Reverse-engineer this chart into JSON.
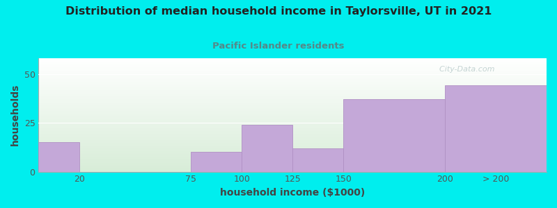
{
  "title": "Distribution of median household income in Taylorsville, UT in 2021",
  "subtitle": "Pacific Islander residents",
  "xlabel": "household income ($1000)",
  "ylabel": "households",
  "background_outer": "#00EEEE",
  "background_inner_top": "#FFFFFF",
  "background_inner_bottom": "#D8EDD8",
  "bar_color": "#C4A8D8",
  "bar_edge_color": "#B090C4",
  "title_color": "#222222",
  "subtitle_color": "#558888",
  "axis_label_color": "#444444",
  "tick_label_color": "#555555",
  "values": [
    15,
    0,
    10,
    24,
    12,
    37,
    44
  ],
  "bar_lefts": [
    0,
    20,
    75,
    100,
    125,
    150,
    200
  ],
  "bar_rights": [
    20,
    75,
    100,
    125,
    150,
    200,
    250
  ],
  "xtick_positions": [
    20,
    75,
    100,
    125,
    150,
    200,
    225
  ],
  "xtick_labels": [
    "20",
    "75",
    "100",
    "125",
    "150",
    "200",
    "> 200"
  ],
  "xlim": [
    0,
    250
  ],
  "ylim": [
    0,
    58
  ],
  "yticks": [
    0,
    25,
    50
  ],
  "watermark": "  City-Data.com"
}
